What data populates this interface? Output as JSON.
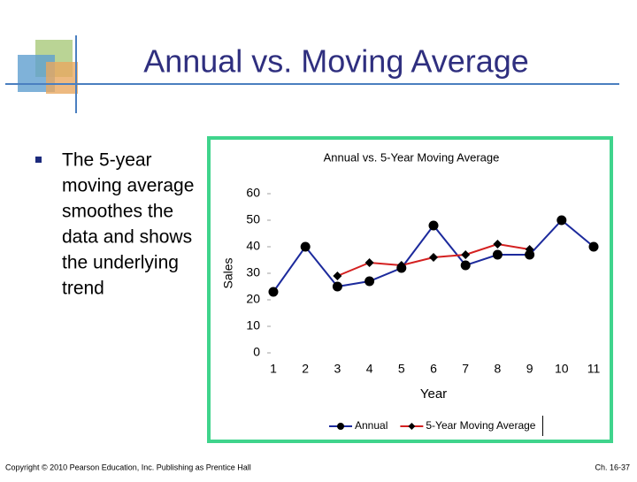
{
  "slide": {
    "title": "Annual vs. Moving Average",
    "bullet": [
      "The 5-year",
      "moving average",
      "smoothes the",
      "data and shows",
      "the underlying",
      "trend"
    ],
    "footer_left": "Copyright © 2010 Pearson Education, Inc. Publishing as Prentice Hall",
    "footer_right": "Ch. 16-37"
  },
  "chart_data": {
    "type": "line",
    "title": "Annual vs. 5-Year Moving Average",
    "x_label": "Year",
    "y_label": "Sales",
    "x": [
      1,
      2,
      3,
      4,
      5,
      6,
      7,
      8,
      9,
      10,
      11
    ],
    "series": [
      {
        "name": "Annual",
        "color": "#1c2a9c",
        "marker": "circle",
        "values": [
          23,
          40,
          25,
          27,
          32,
          48,
          33,
          37,
          37,
          50,
          40
        ]
      },
      {
        "name": "5-Year Moving Average",
        "color": "#d42020",
        "marker": "diamond",
        "values": [
          null,
          null,
          29,
          34,
          33,
          36,
          37,
          41,
          39,
          null,
          null
        ]
      }
    ],
    "xlim": [
      0.6,
      11.4
    ],
    "xticks": [
      1,
      2,
      3,
      4,
      5,
      6,
      7,
      8,
      9,
      10,
      11
    ],
    "ylim": [
      0,
      60
    ],
    "yticks": [
      0,
      10,
      20,
      30,
      40,
      50,
      60
    ],
    "grid": false,
    "legend": "bottom"
  }
}
